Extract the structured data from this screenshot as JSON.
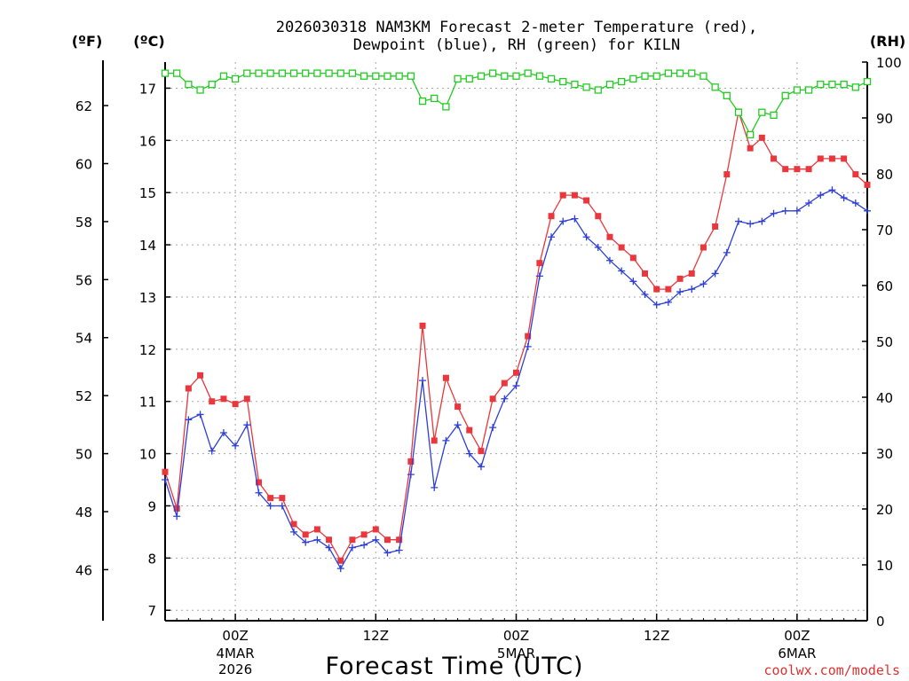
{
  "chart_data": {
    "type": "line",
    "title_line1": "2026030318 NAM3KM Forecast 2-meter Temperature (red),",
    "title_line2": "Dewpoint (blue), RH (green) for KILN",
    "xlabel": "Forecast Time (UTC)",
    "credit": "coolwx.com/models",
    "units": {
      "fahrenheit": "(ºF)",
      "celsius": "(ºC)",
      "rh": "(RH)"
    },
    "grid": true,
    "x_hours": {
      "min": 0,
      "max": 60,
      "step": 1,
      "note": "hours after 2026-03-03 18Z"
    },
    "x_ticks": [
      {
        "hour": 6,
        "label": "00Z",
        "sub1": "4MAR",
        "sub2": "2026"
      },
      {
        "hour": 18,
        "label": "12Z",
        "sub1": "",
        "sub2": ""
      },
      {
        "hour": 30,
        "label": "00Z",
        "sub1": "5MAR",
        "sub2": ""
      },
      {
        "hour": 42,
        "label": "12Z",
        "sub1": "",
        "sub2": ""
      },
      {
        "hour": 54,
        "label": "00Z",
        "sub1": "6MAR",
        "sub2": ""
      }
    ],
    "y_celsius": {
      "min": 6.8,
      "max": 17.5,
      "ticks": [
        7,
        8,
        9,
        10,
        11,
        12,
        13,
        14,
        15,
        16,
        17
      ]
    },
    "y_fahrenheit": {
      "ticks": [
        46,
        48,
        50,
        52,
        54,
        56,
        58,
        60,
        62
      ]
    },
    "y_rh": {
      "min": 0,
      "max": 100,
      "ticks": [
        0,
        10,
        20,
        30,
        40,
        50,
        60,
        70,
        80,
        90,
        100
      ]
    },
    "series": [
      {
        "name": "Temperature",
        "color": "#e8383d",
        "marker": "filled-square",
        "axis": "celsius",
        "values": [
          9.65,
          8.95,
          11.25,
          11.5,
          11.0,
          11.05,
          10.95,
          11.05,
          9.45,
          9.15,
          9.15,
          8.65,
          8.45,
          8.55,
          8.35,
          7.95,
          8.35,
          8.45,
          8.55,
          8.35,
          8.35,
          9.85,
          12.45,
          10.25,
          11.45,
          10.9,
          10.45,
          10.05,
          11.05,
          11.35,
          11.55,
          12.25,
          13.65,
          14.55,
          14.95,
          14.95,
          14.85,
          14.55,
          14.15,
          13.95,
          13.75,
          13.45,
          13.15,
          13.15,
          13.35,
          13.45,
          13.95,
          14.35,
          15.35,
          16.55,
          15.85,
          16.05,
          15.65,
          15.45,
          15.45,
          15.45,
          15.65,
          15.65,
          15.65,
          15.35,
          15.15
        ]
      },
      {
        "name": "Dewpoint",
        "color": "#2d3fd6",
        "marker": "plus",
        "axis": "celsius",
        "values": [
          9.5,
          8.8,
          10.65,
          10.75,
          10.05,
          10.4,
          10.15,
          10.55,
          9.25,
          9.0,
          9.0,
          8.5,
          8.3,
          8.35,
          8.2,
          7.8,
          8.2,
          8.25,
          8.35,
          8.1,
          8.15,
          9.6,
          11.4,
          9.35,
          10.25,
          10.55,
          10.0,
          9.75,
          10.5,
          11.05,
          11.3,
          12.05,
          13.4,
          14.15,
          14.45,
          14.5,
          14.15,
          13.95,
          13.7,
          13.5,
          13.3,
          13.05,
          12.85,
          12.9,
          13.1,
          13.15,
          13.25,
          13.45,
          13.85,
          14.45,
          14.4,
          14.45,
          14.6,
          14.65,
          14.65,
          14.8,
          14.95,
          15.05,
          14.9,
          14.8,
          14.65
        ]
      },
      {
        "name": "RH",
        "color": "#22cc22",
        "marker": "open-square",
        "axis": "rh",
        "values": [
          98,
          98,
          96,
          95,
          96,
          97.5,
          97,
          98,
          98,
          98,
          98,
          98,
          98,
          98,
          98,
          98,
          98,
          97.5,
          97.5,
          97.5,
          97.5,
          97.5,
          93,
          93.5,
          92,
          97,
          97,
          97.5,
          98,
          97.5,
          97.5,
          98,
          97.5,
          97,
          96.5,
          96,
          95.5,
          95,
          96,
          96.5,
          97,
          97.5,
          97.5,
          98,
          98,
          98,
          97.5,
          95.5,
          94,
          91,
          87,
          91,
          90.5,
          94,
          95,
          95,
          96,
          96,
          96,
          95.5,
          96.5
        ]
      }
    ]
  }
}
